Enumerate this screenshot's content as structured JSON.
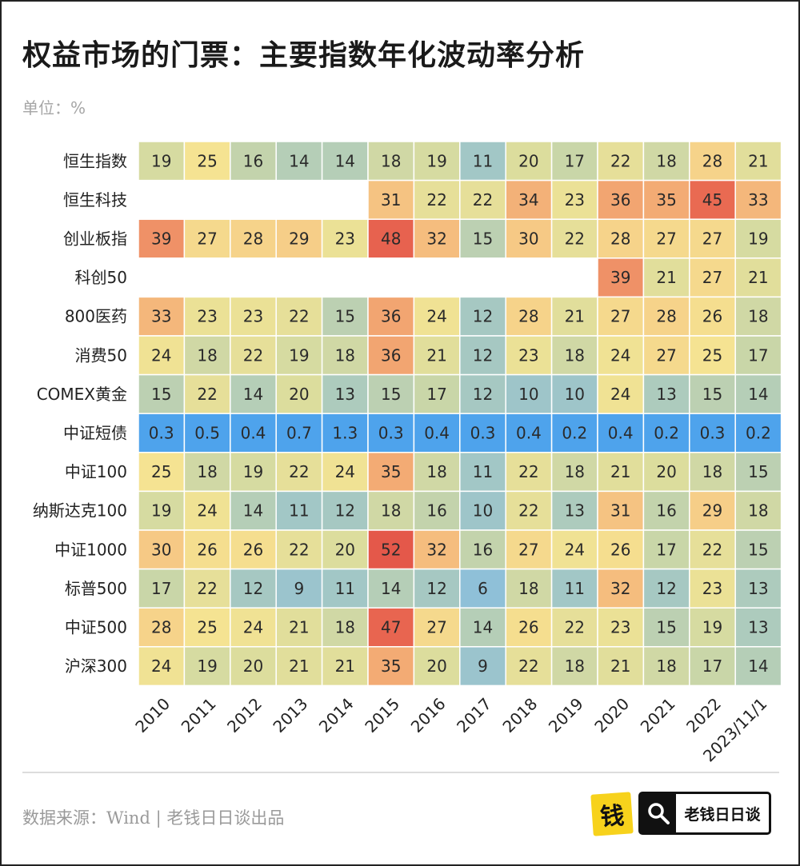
{
  "title": "权益市场的门票：主要指数年化波动率分析",
  "unit_label": "单位：%",
  "source": "数据来源：Wind | 老钱日日谈出品",
  "logo": {
    "mark": "钱",
    "text": "老钱日日谈",
    "icon": "search-icon"
  },
  "chart_data": {
    "type": "heatmap",
    "title": "权益市场的门票：主要指数年化波动率分析",
    "unit": "单位：%",
    "columns": [
      "2010",
      "2011",
      "2012",
      "2013",
      "2014",
      "2015",
      "2016",
      "2017",
      "2018",
      "2019",
      "2020",
      "2021",
      "2022",
      "2023/11/1"
    ],
    "rows": [
      {
        "name": "恒生指数",
        "values": [
          "19",
          "25",
          "16",
          "14",
          "14",
          "18",
          "19",
          "11",
          "20",
          "17",
          "22",
          "18",
          "28",
          "21"
        ]
      },
      {
        "name": "恒生科技",
        "values": [
          null,
          null,
          null,
          null,
          null,
          "31",
          "22",
          "22",
          "34",
          "23",
          "36",
          "35",
          "45",
          "33"
        ]
      },
      {
        "name": "创业板指",
        "values": [
          "39",
          "27",
          "28",
          "29",
          "23",
          "48",
          "32",
          "15",
          "30",
          "22",
          "28",
          "27",
          "27",
          "19"
        ]
      },
      {
        "name": "科创50",
        "values": [
          null,
          null,
          null,
          null,
          null,
          null,
          null,
          null,
          null,
          null,
          "39",
          "21",
          "27",
          "21"
        ]
      },
      {
        "name": "800医药",
        "values": [
          "33",
          "23",
          "23",
          "22",
          "15",
          "36",
          "24",
          "12",
          "28",
          "21",
          "27",
          "28",
          "26",
          "18"
        ]
      },
      {
        "name": "消费50",
        "values": [
          "24",
          "18",
          "22",
          "19",
          "18",
          "36",
          "21",
          "12",
          "23",
          "18",
          "24",
          "27",
          "25",
          "17"
        ]
      },
      {
        "name": "COMEX黄金",
        "values": [
          "15",
          "22",
          "14",
          "20",
          "13",
          "15",
          "17",
          "12",
          "10",
          "10",
          "24",
          "13",
          "15",
          "14"
        ]
      },
      {
        "name": "中证短债",
        "values": [
          "0.3",
          "0.5",
          "0.4",
          "0.7",
          "1.3",
          "0.3",
          "0.4",
          "0.3",
          "0.4",
          "0.2",
          "0.4",
          "0.2",
          "0.3",
          "0.2"
        ]
      },
      {
        "name": "中证100",
        "values": [
          "25",
          "18",
          "19",
          "22",
          "24",
          "35",
          "18",
          "11",
          "22",
          "18",
          "21",
          "20",
          "18",
          "15"
        ]
      },
      {
        "name": "纳斯达克100",
        "values": [
          "19",
          "24",
          "14",
          "11",
          "12",
          "18",
          "16",
          "10",
          "22",
          "13",
          "31",
          "16",
          "29",
          "18"
        ]
      },
      {
        "name": "中证1000",
        "values": [
          "30",
          "26",
          "26",
          "22",
          "20",
          "52",
          "32",
          "16",
          "27",
          "24",
          "26",
          "17",
          "22",
          "15"
        ]
      },
      {
        "name": "标普500",
        "values": [
          "17",
          "22",
          "12",
          "9",
          "11",
          "14",
          "12",
          "6",
          "18",
          "11",
          "32",
          "12",
          "23",
          "13"
        ]
      },
      {
        "name": "中证500",
        "values": [
          "28",
          "25",
          "24",
          "21",
          "18",
          "47",
          "27",
          "14",
          "26",
          "22",
          "23",
          "15",
          "19",
          "13"
        ]
      },
      {
        "name": "沪深300",
        "values": [
          "24",
          "19",
          "20",
          "21",
          "21",
          "35",
          "20",
          "9",
          "22",
          "18",
          "21",
          "18",
          "17",
          "14"
        ]
      }
    ],
    "color_scale": {
      "stops": [
        {
          "value": 2,
          "color": "#4ea3ec"
        },
        {
          "value": 6,
          "color": "#8fc0d8"
        },
        {
          "value": 12,
          "color": "#a6c8c2"
        },
        {
          "value": 16,
          "color": "#c3d3ac"
        },
        {
          "value": 20,
          "color": "#dcdd9d"
        },
        {
          "value": 25,
          "color": "#f5e392"
        },
        {
          "value": 30,
          "color": "#f6c985"
        },
        {
          "value": 36,
          "color": "#f2a571"
        },
        {
          "value": 45,
          "color": "#e96a52"
        },
        {
          "value": 52,
          "color": "#e4584a"
        }
      ]
    },
    "empty_color": "#ffffff",
    "gridline_color": "#ffffff"
  }
}
